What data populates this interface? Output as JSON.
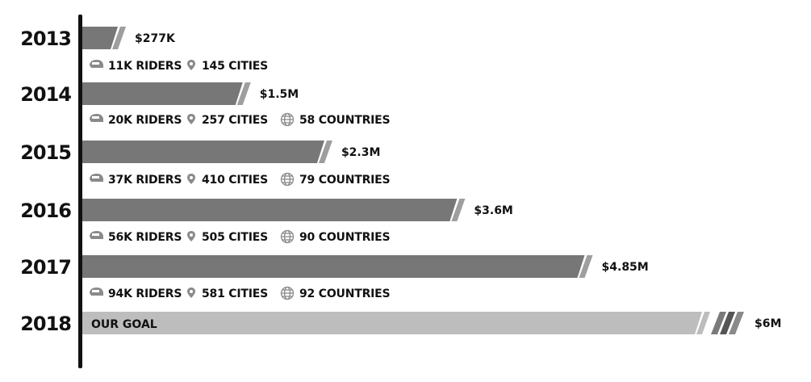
{
  "chart_data": {
    "type": "bar",
    "orientation": "horizontal",
    "categories": [
      "2013",
      "2014",
      "2015",
      "2016",
      "2017",
      "2018"
    ],
    "values": [
      0.277,
      1.5,
      2.3,
      3.6,
      4.85,
      6
    ],
    "value_labels": [
      "$277K",
      "$1.5M",
      "$2.3M",
      "$3.6M",
      "$4.85M",
      "$6M"
    ],
    "xlim": [
      0,
      6
    ],
    "grid": false,
    "goal": {
      "category": "2018",
      "label": "OUR GOAL"
    },
    "stats": [
      {
        "riders": "11K RIDERS",
        "cities": "145 CITIES",
        "countries": ""
      },
      {
        "riders": "20K RIDERS",
        "cities": "257 CITIES",
        "countries": "58 COUNTRIES"
      },
      {
        "riders": "37K RIDERS",
        "cities": "410 CITIES",
        "countries": "79 COUNTRIES"
      },
      {
        "riders": "56K RIDERS",
        "cities": "505 CITIES",
        "countries": "90 COUNTRIES"
      },
      {
        "riders": "94K RIDERS",
        "cities": "581 CITIES",
        "countries": "92 COUNTRIES"
      }
    ]
  },
  "colors": {
    "bar": "#777777",
    "goal_bar": "#bdbdbd",
    "axis": "#111111",
    "icon": "#8a8a8a",
    "text": "#111111"
  },
  "icons": {
    "riders": "helmet-icon",
    "cities": "location-pin-icon",
    "countries": "globe-icon"
  }
}
